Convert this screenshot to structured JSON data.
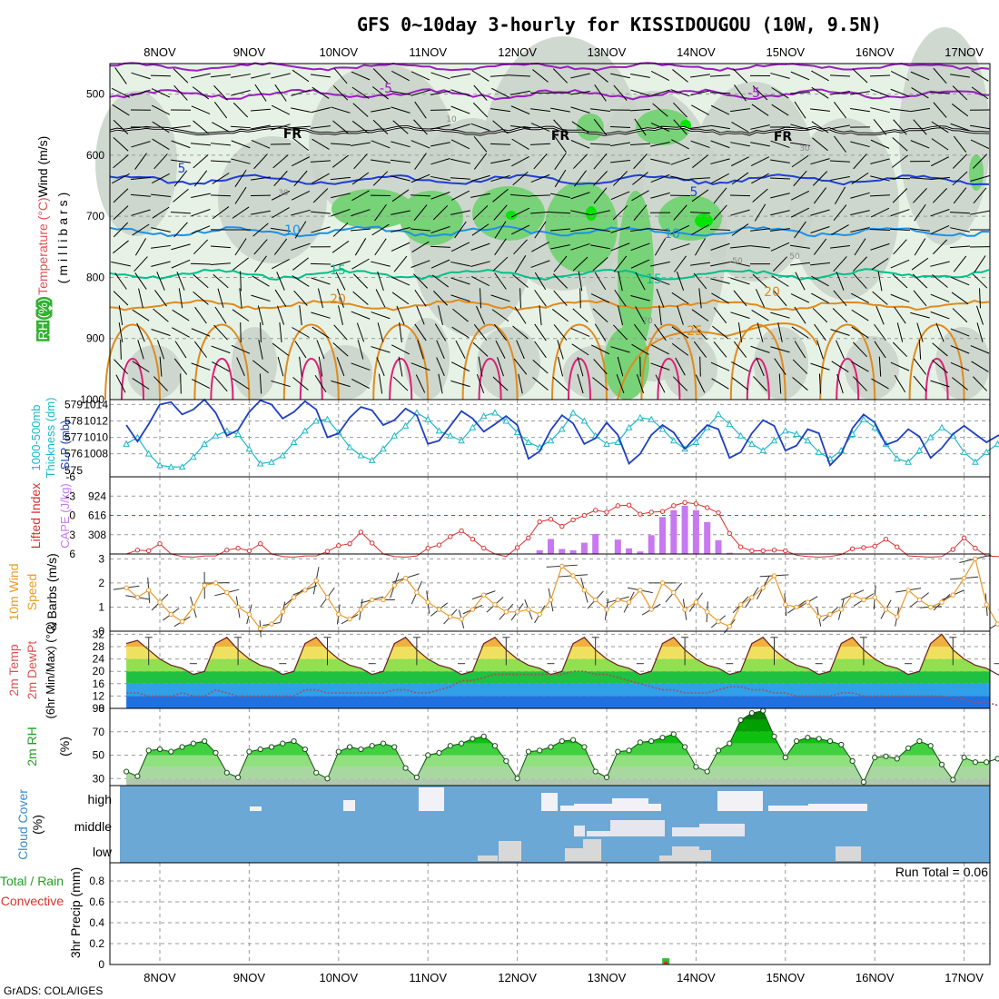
{
  "title": "GFS 0~10day 3-hourly for KISSIDOUGOU (10W, 9.5N)",
  "credit": "GrADS: COLA/IGES",
  "dates": [
    "8NOV",
    "9NOV",
    "10NOV",
    "11NOV",
    "12NOV",
    "13NOV",
    "14NOV",
    "15NOV",
    "16NOV",
    "17NOV"
  ],
  "colors": {
    "rh_light": "#e6f2e6",
    "rh_gray": "#c8d2c8",
    "rh_green": "#78d278",
    "rh_bright": "#00e600",
    "temp_purple": "#9a1fbf",
    "temp_blue": "#1e3fd8",
    "temp_cyan": "#1e90e6",
    "temp_teal": "#00c08a",
    "temp_orange": "#e08a1e",
    "temp_red": "#e01e78",
    "slp": "#1e3fbf",
    "thick": "#20b8c8",
    "cape": "#c878f0",
    "li": "#d83030",
    "wind10": "#e89a2a",
    "cloud_bg": "#6ba8d6",
    "cloud_fill": "#f2f2f6"
  },
  "chart_data": [
    {
      "panel": "upper-air",
      "type": "heatmap",
      "ylabel_parts": [
        "RH (%)",
        "Temperature (°C)",
        "Wind (m/s)"
      ],
      "ylabel_units": "(millibars)",
      "ylim": [
        1000,
        450
      ],
      "yticks": [
        500,
        600,
        700,
        800,
        900,
        1000
      ],
      "contour_labels": [
        "-5",
        "-5",
        "FR",
        "FR",
        "FR",
        "5",
        "5",
        "10",
        "10",
        "15",
        "15",
        "20",
        "20",
        "25",
        "10",
        "30",
        "30",
        "50",
        "50",
        "70"
      ],
      "isotherms": [
        {
          "name": "-5",
          "level": 500
        },
        {
          "name": "FR",
          "level": 560
        },
        {
          "name": "5",
          "level": 640
        },
        {
          "name": "10",
          "level": 725
        },
        {
          "name": "15",
          "level": 795
        },
        {
          "name": "20",
          "level": 845
        }
      ]
    },
    {
      "panel": "slp-thickness",
      "type": "line",
      "ylabel_left": [
        "1000-500mb",
        "Thickness (dm)"
      ],
      "ylabel_right": "SLP (mb)",
      "yticks_thickness": [
        575,
        576,
        577,
        578,
        579
      ],
      "yticks_slp": [
        1008,
        1010,
        1012,
        1014
      ],
      "series": [
        {
          "name": "SLP (mb)",
          "values": [
            1011.5,
            1009.5,
            1011.6,
            1014.0,
            1014.3,
            1012.8,
            1013.4,
            1014.6,
            1013.0,
            1010.2,
            1010.9,
            1013.1,
            1014.5,
            1014.0,
            1012.3,
            1013.1,
            1014.4,
            1013.4,
            1010.0,
            1010.5,
            1012.4,
            1013.7,
            1013.3,
            1011.5,
            1012.1,
            1013.5,
            1012.7,
            1009.2,
            1009.6,
            1011.4,
            1013.2,
            1012.3,
            1010.7,
            1011.6,
            1012.6,
            1011.5,
            1007.4,
            1008.3,
            1010.9,
            1012.7,
            1011.7,
            1009.2,
            1009.9,
            1011.8,
            1010.3,
            1006.8,
            1008.0,
            1010.3,
            1011.5,
            1010.6,
            1008.6,
            1010.1,
            1011.5,
            1011.0,
            1007.5,
            1008.2,
            1010.5,
            1012.1,
            1011.4,
            1008.4,
            1009.0,
            1011.0,
            1010.5,
            1006.6,
            1008.0,
            1011.1,
            1012.8,
            1011.8,
            1009.1,
            1009.6,
            1011.0,
            1010.1,
            1007.5,
            1008.7,
            1010.4,
            1011.4,
            1010.4,
            1009.4,
            1010.2,
            1010.7
          ]
        },
        {
          "name": "1000-500mb Thickness (dm)",
          "values": [
            576.6,
            577.0,
            576.0,
            575.3,
            575.2,
            575.2,
            575.8,
            576.6,
            577.1,
            577.4,
            577.2,
            576.3,
            575.4,
            575.5,
            575.9,
            576.7,
            577.4,
            578.0,
            578.1,
            577.3,
            576.4,
            575.9,
            575.6,
            576.3,
            577.1,
            577.7,
            578.5,
            578.1,
            577.4,
            577.1,
            576.8,
            577.6,
            578.3,
            578.5,
            578.0,
            577.3,
            576.7,
            576.4,
            576.8,
            577.5,
            578.5,
            578.0,
            577.1,
            576.6,
            576.7,
            577.6,
            578.2,
            578.1,
            577.5,
            576.8,
            576.3,
            576.7,
            577.6,
            578.4,
            577.8,
            577.1,
            576.6,
            576.2,
            576.8,
            577.4,
            577.2,
            576.8,
            576.1,
            575.7,
            576.2,
            577.2,
            578.1,
            577.6,
            576.6,
            575.7,
            575.5,
            576.2,
            577.0,
            577.6,
            577.1,
            576.1,
            575.5,
            576.1,
            576.6,
            576.4
          ]
        }
      ]
    },
    {
      "panel": "cape-li",
      "type": "bar",
      "ylabel_left": "Lifted Index",
      "ylabel_right": "CAPE (J/kg)",
      "yticks_li": [
        "-6",
        "-3",
        "0",
        "3",
        "6"
      ],
      "yticks_cape": [
        308,
        616,
        924
      ],
      "li_ylim": [
        6,
        -6
      ],
      "cape_ylim": [
        0,
        1232
      ],
      "series": [
        {
          "name": "CAPE (J/kg)",
          "values": [
            0,
            0,
            0,
            0,
            0,
            0,
            0,
            0,
            0,
            0,
            0,
            0,
            0,
            0,
            0,
            0,
            0,
            0,
            0,
            0,
            0,
            0,
            0,
            0,
            0,
            0,
            0,
            0,
            0,
            0,
            0,
            0,
            0,
            0,
            0,
            0,
            0,
            60,
            240,
            80,
            60,
            180,
            320,
            0,
            230,
            90,
            40,
            300,
            590,
            700,
            770,
            700,
            510,
            220,
            20,
            0,
            0,
            0,
            0,
            0,
            0,
            0,
            0,
            0,
            0,
            0,
            0,
            0,
            0,
            0,
            0,
            0,
            0,
            0,
            0,
            0,
            0,
            0,
            0,
            0
          ]
        },
        {
          "name": "Lifted Index",
          "values": [
            6,
            5.4,
            5.5,
            4.4,
            6.0,
            6.4,
            6.5,
            6.3,
            6.3,
            5.4,
            5.1,
            5.5,
            4.4,
            6.0,
            6.4,
            6.5,
            6.3,
            6.3,
            5.6,
            4.7,
            4.4,
            2.6,
            4.3,
            6.0,
            6.4,
            6.5,
            6.3,
            5.1,
            4.6,
            3.3,
            2.4,
            3.7,
            5.1,
            6.0,
            6.4,
            5.0,
            3.5,
            1.0,
            0.6,
            1.7,
            0.7,
            0.0,
            -0.8,
            -0.5,
            -1.5,
            -1.6,
            -0.2,
            -0.5,
            -0.6,
            -1.5,
            -2.0,
            -1.8,
            -1.2,
            -0.4,
            2.8,
            4.9,
            5.5,
            5.5,
            5.4,
            5.5,
            6.2,
            6.4,
            6.5,
            6.4,
            6.1,
            5.2,
            5.0,
            4.8,
            3.7,
            4.9,
            6.3,
            6.4,
            6.5,
            6.4,
            5.3,
            3.5,
            5.1,
            6.3,
            6.4,
            6.5
          ]
        }
      ]
    },
    {
      "panel": "wind10m",
      "type": "line",
      "ylabel": [
        "10m Wind",
        "Speed",
        "& Barbs (m/s)"
      ],
      "yticks": [
        0,
        1,
        2,
        3
      ],
      "ylim": [
        0,
        3.2
      ],
      "series": [
        {
          "name": "Speed",
          "values": [
            1.8,
            1.4,
            1.7,
            1.2,
            0.7,
            0.4,
            1.0,
            1.9,
            2.0,
            1.6,
            1.0,
            0.7,
            0.1,
            0.3,
            0.8,
            1.4,
            1.7,
            2.1,
            1.4,
            0.7,
            0.5,
            0.9,
            1.3,
            1.3,
            1.9,
            2.2,
            1.6,
            1.2,
            0.9,
            0.6,
            0.5,
            0.9,
            1.5,
            1.1,
            0.8,
            0.8,
            0.9,
            0.7,
            1.3,
            2.7,
            2.3,
            1.7,
            1.3,
            0.9,
            1.3,
            1.2,
            1.7,
            0.9,
            2.0,
            1.6,
            0.9,
            1.2,
            0.8,
            0.4,
            0.2,
            1.1,
            1.4,
            1.8,
            2.3,
            1.1,
            1.0,
            1.2,
            0.6,
            0.7,
            0.9,
            1.5,
            1.3,
            1.4,
            0.9,
            0.6,
            1.7,
            1.3,
            1.0,
            1.2,
            1.5,
            2.2,
            3.0,
            1.1,
            0.3,
            0.8
          ]
        }
      ]
    },
    {
      "panel": "temp2m",
      "type": "area",
      "ylabel": [
        "2m Temp",
        "2m DewPt",
        "(6hr Min/Max) (°C)"
      ],
      "yticks": [
        8,
        12,
        16,
        20,
        24,
        28,
        32
      ],
      "ylim": [
        8,
        33
      ],
      "series": [
        {
          "name": "2m Temp",
          "values": [
            29,
            30,
            27,
            24,
            22,
            21,
            19,
            20,
            29,
            31,
            27,
            24,
            22,
            21,
            19,
            20,
            29,
            31,
            27,
            24,
            22,
            21,
            19,
            20,
            29,
            31,
            27,
            24,
            22,
            21,
            19,
            20,
            29,
            31,
            27,
            24,
            22,
            21,
            19,
            20,
            29,
            31,
            27,
            24,
            22,
            21,
            19,
            20,
            29,
            31,
            27,
            24,
            22,
            21,
            19,
            20,
            29,
            31,
            27,
            24,
            22,
            21,
            19,
            20,
            29,
            31,
            27,
            24,
            22,
            21,
            19,
            20,
            29,
            32,
            27,
            24,
            22,
            21,
            19,
            18
          ]
        },
        {
          "name": "2m DewPt",
          "values": [
            13,
            13,
            12,
            12,
            12,
            13,
            12,
            12,
            14,
            13,
            12,
            12,
            12,
            12,
            12,
            12,
            14,
            14,
            13,
            13,
            13,
            13,
            13,
            13,
            14,
            14,
            13,
            13,
            14,
            15,
            17,
            17,
            18,
            19,
            19,
            19,
            19,
            19,
            19,
            19,
            20,
            20,
            19,
            19,
            18,
            17,
            16,
            15,
            14,
            14,
            13,
            13,
            13,
            14,
            15,
            15,
            14,
            14,
            13,
            13,
            12,
            12,
            12,
            12,
            13,
            13,
            12,
            12,
            12,
            12,
            12,
            12,
            12,
            12,
            11,
            11,
            10,
            10,
            9,
            9
          ]
        }
      ]
    },
    {
      "panel": "rh2m",
      "type": "area",
      "ylabel": [
        "2m RH",
        "(%)"
      ],
      "yticks": [
        30,
        50,
        70,
        90
      ],
      "ylim": [
        24,
        90
      ],
      "series": [
        {
          "name": "2m RH",
          "values": [
            36,
            32,
            54,
            55,
            53,
            57,
            60,
            62,
            52,
            35,
            31,
            53,
            55,
            57,
            60,
            62,
            55,
            35,
            30,
            53,
            57,
            55,
            58,
            60,
            57,
            39,
            31,
            50,
            52,
            58,
            60,
            64,
            66,
            58,
            45,
            30,
            53,
            54,
            57,
            62,
            63,
            57,
            36,
            31,
            53,
            54,
            61,
            62,
            65,
            68,
            57,
            40,
            36,
            54,
            60,
            80,
            86,
            88,
            66,
            48,
            62,
            65,
            64,
            62,
            59,
            45,
            27,
            48,
            49,
            47,
            56,
            62,
            58,
            42,
            29,
            48,
            44,
            44,
            47,
            52
          ]
        }
      ]
    },
    {
      "panel": "cloud",
      "type": "heatmap",
      "ylabel": [
        "Cloud Cover",
        "(%)"
      ],
      "rows": [
        "high",
        "middle",
        "low"
      ]
    },
    {
      "panel": "precip",
      "type": "bar",
      "ylabel": [
        "3hr Precip (mm)"
      ],
      "legend": [
        "Total / Rain",
        "Convective"
      ],
      "annotation": "Run Total = 0.06",
      "yticks": [
        "0",
        "0.2",
        "0.4",
        "0.6",
        "0.8"
      ],
      "ylim": [
        0,
        1
      ],
      "series": [
        {
          "name": "Total / Rain",
          "values": [
            {
              "x": 48.3,
              "y": 0.06
            }
          ]
        },
        {
          "name": "Convective",
          "values": [
            {
              "x": 48.3,
              "y": 0.03
            }
          ]
        }
      ]
    }
  ]
}
